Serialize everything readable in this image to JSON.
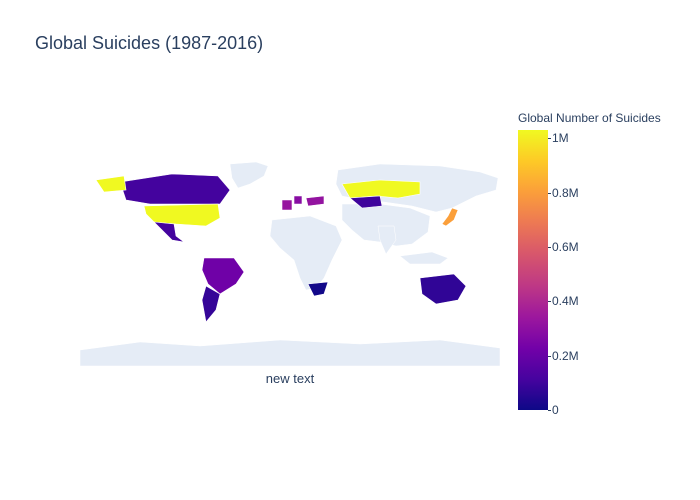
{
  "title": "Global Suicides (1987-2016)",
  "map": {
    "caption": "new text",
    "land_color": "#e5ecf6",
    "border_color": "#ffffff",
    "regions": [
      {
        "name": "United States",
        "value": 1030000
      },
      {
        "name": "Japan",
        "value": 800000
      },
      {
        "name": "Russia",
        "value": 1200000
      },
      {
        "name": "Brazil",
        "value": 220000
      },
      {
        "name": "Canada",
        "value": 110000
      },
      {
        "name": "Australia",
        "value": 70000
      },
      {
        "name": "Kazakhstan",
        "value": 100000
      },
      {
        "name": "Mexico",
        "value": 110000
      },
      {
        "name": "Argentina",
        "value": 80000
      },
      {
        "name": "South Africa",
        "value": 10000
      },
      {
        "name": "Ukraine",
        "value": 320000
      },
      {
        "name": "France",
        "value": 330000
      },
      {
        "name": "Germany",
        "value": 290000
      }
    ]
  },
  "colorbar": {
    "title": "Global Number of Suicides",
    "ticks": [
      {
        "label": "0",
        "value": 0
      },
      {
        "label": "0.2M",
        "value": 200000
      },
      {
        "label": "0.4M",
        "value": 400000
      },
      {
        "label": "0.6M",
        "value": 600000
      },
      {
        "label": "0.8M",
        "value": 800000
      },
      {
        "label": "1M",
        "value": 1000000
      }
    ],
    "max": 1030000,
    "colorscale": [
      "#0d0887",
      "#46039f",
      "#7201a8",
      "#9c179e",
      "#bd3786",
      "#d8576b",
      "#ed7953",
      "#fb9f3a",
      "#fdca26",
      "#f0f921"
    ]
  }
}
